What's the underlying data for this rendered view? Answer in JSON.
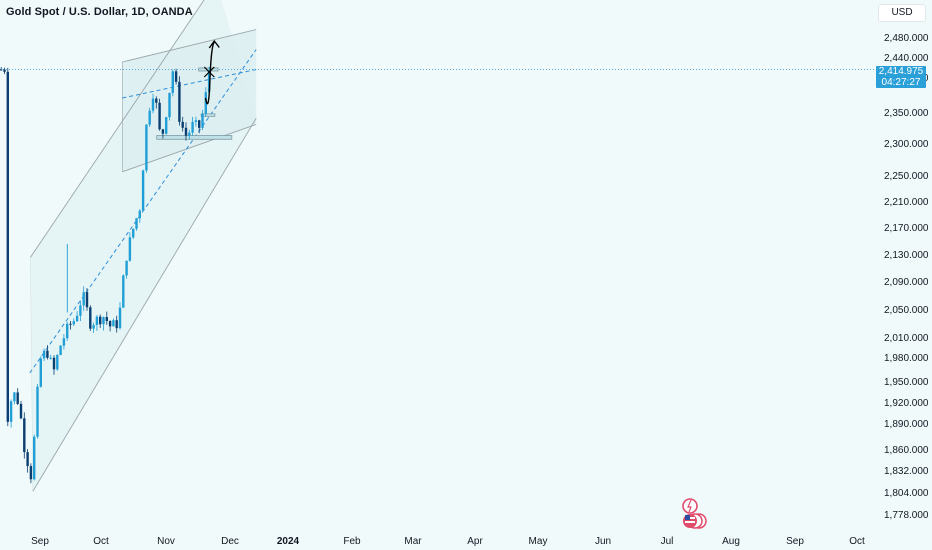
{
  "header": {
    "symbol_title": "Gold Spot / U.S. Dollar, 1D, OANDA",
    "currency_button": "USD"
  },
  "price_label": {
    "value": "2,414.975",
    "countdown": "04:27:27"
  },
  "colors": {
    "background": "#f1fafb",
    "candle_body": "#1f9fd6",
    "candle_down": "#0b3e70",
    "channel_fill": "#dbeef0",
    "channel_line": "#9aa6ac",
    "midline": "#2f8fd8",
    "price_tag": "#2a9fd8",
    "zone_fill": "#bfe0e6",
    "zone_line": "#7d9aa2"
  },
  "chart_data": {
    "type": "candlestick",
    "title": "Gold Spot / U.S. Dollar, 1D, OANDA",
    "currency": "USD",
    "current_price": 2414.975,
    "x_tick_labels": [
      "Sep",
      "Oct",
      "Nov",
      "Dec",
      "2024",
      "Feb",
      "Mar",
      "Apr",
      "May",
      "Jun",
      "Jul",
      "Aug",
      "Sep",
      "Oct"
    ],
    "y_tick_labels": [
      "2,480.000",
      "2,440.000",
      "2,400.000",
      "2,350.000",
      "2,300.000",
      "2,250.000",
      "2,210.000",
      "2,170.000",
      "2,130.000",
      "2,090.000",
      "2,050.000",
      "2,010.000",
      "1,980.000",
      "1,950.000",
      "1,920.000",
      "1,890.000",
      "1,860.000",
      "1,832.000",
      "1,804.000",
      "1,778.000"
    ],
    "ylim": [
      1775,
      2500
    ],
    "series": [
      {
        "dates": [
          "2023-08-28",
          "2023-09-06",
          "2023-09-15",
          "2023-09-25",
          "2023-10-06",
          "2023-10-19",
          "2023-10-30",
          "2023-11-10",
          "2023-11-22",
          "2023-12-04",
          "2023-12-14",
          "2023-12-27",
          "2024-01-08",
          "2024-01-19",
          "2024-01-30",
          "2024-02-09",
          "2024-02-22",
          "2024-03-04",
          "2024-03-14",
          "2024-03-27",
          "2024-04-08",
          "2024-04-19",
          "2024-04-30",
          "2024-05-10",
          "2024-05-20",
          "2024-05-30",
          "2024-06-10",
          "2024-06-20",
          "2024-07-01",
          "2024-07-10",
          "2024-07-16"
        ],
        "close": [
          1895,
          1935,
          1920,
          1860,
          1822,
          1975,
          1990,
          1960,
          2000,
          2025,
          2035,
          2070,
          2030,
          2035,
          2040,
          2025,
          2030,
          2120,
          2160,
          2200,
          2345,
          2385,
          2300,
          2360,
          2420,
          2335,
          2310,
          2330,
          2325,
          2370,
          2415
        ]
      }
    ],
    "drawings": {
      "outer_channel": {
        "upper": [
          [
            "2023-10-06",
            2125
          ],
          [
            "2024-07-29",
            2590
          ]
        ],
        "lower": [
          [
            "2023-10-10",
            1805
          ],
          [
            "2024-10-01",
            2340
          ]
        ]
      },
      "inner_channel": {
        "upper": [
          [
            "2024-03-01",
            2430
          ],
          [
            "2024-10-01",
            2495
          ]
        ],
        "lower": [
          [
            "2024-03-01",
            2255
          ],
          [
            "2024-10-01",
            2330
          ]
        ]
      },
      "dashed_midlines": [
        [
          [
            "2023-10-05",
            1960
          ],
          [
            "2024-10-01",
            2455
          ]
        ],
        [
          [
            "2024-03-01",
            2370
          ],
          [
            "2024-10-01",
            2415
          ]
        ]
      ],
      "zones": [
        {
          "from": "2024-07-01",
          "to": "2024-08-01",
          "top": 2418,
          "bottom": 2412
        },
        {
          "from": "2024-07-05",
          "to": "2024-07-27",
          "top": 2347,
          "bottom": 2343
        },
        {
          "from": "2024-04-25",
          "to": "2024-08-23",
          "top": 2312,
          "bottom": 2306
        }
      ],
      "arrow_path": "bearish dip then bullish continuation toward 2470"
    }
  }
}
